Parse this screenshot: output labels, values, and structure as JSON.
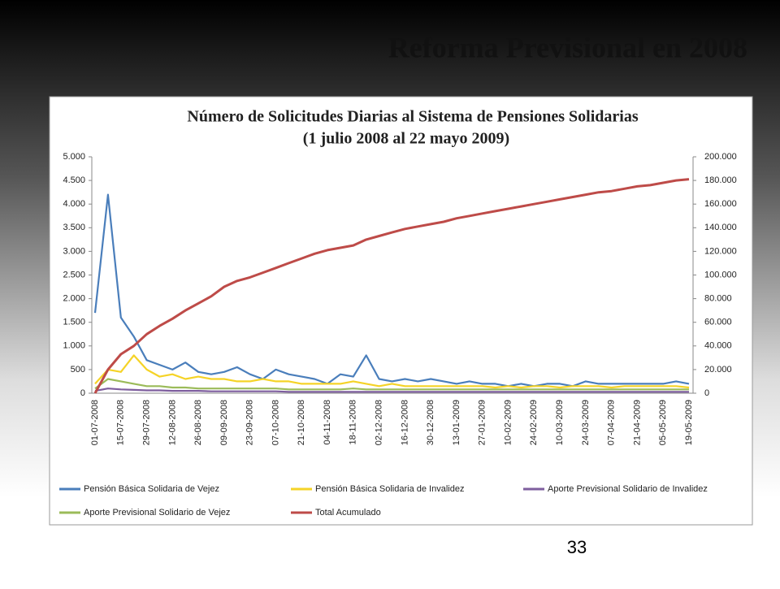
{
  "slide_title": "Reforma Previsional en 2008",
  "page_number": "33",
  "chart_data": {
    "type": "line",
    "title": "Número de Solicitudes Diarias al Sistema de Pensiones Solidarias",
    "subtitle": "(1 julio 2008 al 22 mayo 2009)",
    "categories": [
      "01-07-2008",
      null,
      "15-07-2008",
      null,
      "29-07-2008",
      null,
      "12-08-2008",
      null,
      "26-08-2008",
      null,
      "09-09-2008",
      null,
      "23-09-2008",
      null,
      "07-10-2008",
      null,
      "21-10-2008",
      null,
      "04-11-2008",
      null,
      "18-11-2008",
      null,
      "02-12-2008",
      null,
      "16-12-2008",
      null,
      "30-12-2008",
      null,
      "13-01-2009",
      null,
      "27-01-2009",
      null,
      "10-02-2009",
      null,
      "24-02-2009",
      null,
      "10-03-2009",
      null,
      "24-03-2009",
      null,
      "07-04-2009",
      null,
      "21-04-2009",
      null,
      "05-05-2009",
      null,
      "19-05-2009"
    ],
    "ylim": [
      0,
      5000
    ],
    "yticks": [
      0,
      {
        "value": 500,
        "label": "500"
      },
      {
        "value": 1000,
        "label": "1.000"
      },
      {
        "value": 1500,
        "label": "1.500"
      },
      {
        "value": 2000,
        "label": "2.000"
      },
      {
        "value": 2500,
        "label": "2.500"
      },
      {
        "value": 3000,
        "label": "3.000"
      },
      {
        "value": 3500,
        "label": "3.500"
      },
      {
        "value": 4000,
        "label": "4.000"
      },
      {
        "value": 4500,
        "label": "4.500"
      },
      {
        "value": 5000,
        "label": "5.000"
      }
    ],
    "y2lim": [
      0,
      200000
    ],
    "y2ticks": [
      0,
      {
        "value": 20000,
        "label": "20.000"
      },
      {
        "value": 40000,
        "label": "40.000"
      },
      {
        "value": 60000,
        "label": "60.000"
      },
      {
        "value": 80000,
        "label": "80.000"
      },
      {
        "value": 100000,
        "label": "100.000"
      },
      {
        "value": 120000,
        "label": "120.000"
      },
      {
        "value": 140000,
        "label": "140.000"
      },
      {
        "value": 160000,
        "label": "160.000"
      },
      {
        "value": 180000,
        "label": "180.000"
      },
      {
        "value": 200000,
        "label": "200.000"
      }
    ],
    "series": [
      {
        "name": "Pensión Básica Solidaria de Vejez",
        "color": "#4a7ebb",
        "values": [
          1700,
          4200,
          1600,
          1200,
          700,
          600,
          500,
          650,
          450,
          400,
          450,
          550,
          400,
          300,
          500,
          400,
          350,
          300,
          200,
          400,
          350,
          800,
          300,
          250,
          300,
          250,
          300,
          250,
          200,
          250,
          200,
          200,
          150,
          200,
          150,
          200,
          200,
          150,
          250,
          200,
          200,
          200,
          200,
          200,
          200,
          250,
          200
        ]
      },
      {
        "name": "Pensión Básica Solidaria de Invalidez",
        "color": "#f5d327",
        "values": [
          200,
          500,
          450,
          800,
          500,
          350,
          400,
          300,
          350,
          300,
          300,
          250,
          250,
          300,
          250,
          250,
          200,
          200,
          200,
          200,
          250,
          200,
          150,
          200,
          150,
          150,
          150,
          150,
          150,
          150,
          150,
          120,
          150,
          120,
          150,
          150,
          120,
          150,
          150,
          150,
          120,
          150,
          150,
          150,
          150,
          150,
          120
        ]
      },
      {
        "name": "Aporte Previsional Solidario de Invalidez",
        "color": "#7e5e9e",
        "values": [
          50,
          100,
          80,
          70,
          60,
          60,
          50,
          50,
          50,
          40,
          40,
          40,
          40,
          40,
          40,
          30,
          30,
          30,
          30,
          30,
          30,
          30,
          30,
          30,
          30,
          30,
          30,
          30,
          30,
          30,
          30,
          30,
          30,
          30,
          30,
          30,
          30,
          30,
          30,
          30,
          30,
          30,
          30,
          30,
          30,
          30,
          30
        ]
      },
      {
        "name": "Aporte Previsional Solidario de Vejez",
        "color": "#9bbb59",
        "values": [
          100,
          300,
          250,
          200,
          150,
          150,
          120,
          120,
          100,
          100,
          100,
          100,
          100,
          100,
          100,
          80,
          80,
          80,
          80,
          80,
          100,
          80,
          80,
          80,
          80,
          80,
          80,
          80,
          80,
          80,
          80,
          80,
          80,
          80,
          80,
          80,
          80,
          80,
          80,
          80,
          80,
          80,
          80,
          80,
          80,
          80,
          80
        ]
      },
      {
        "name": "Total Acumulado",
        "color": "#be4b48",
        "axis": "y2",
        "values": [
          0,
          20000,
          33000,
          40000,
          50000,
          57000,
          63000,
          70000,
          76000,
          82000,
          90000,
          95000,
          98000,
          102000,
          106000,
          110000,
          114000,
          118000,
          121000,
          123000,
          125000,
          130000,
          133000,
          136000,
          139000,
          141000,
          143000,
          145000,
          148000,
          150000,
          152000,
          154000,
          156000,
          158000,
          160000,
          162000,
          164000,
          166000,
          168000,
          170000,
          171000,
          173000,
          175000,
          176000,
          178000,
          180000,
          181000
        ]
      }
    ]
  }
}
